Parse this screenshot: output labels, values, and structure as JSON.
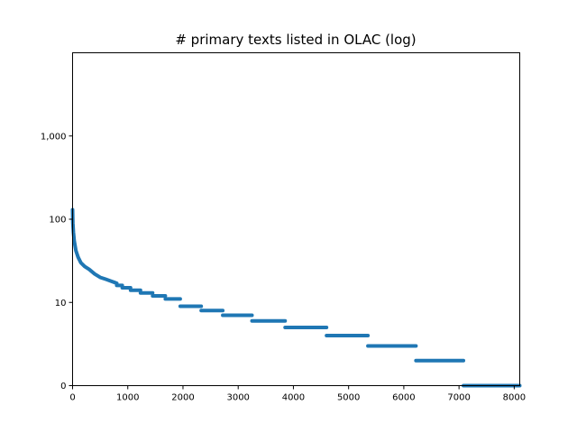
{
  "chart_data": {
    "type": "scatter",
    "title": "# primary texts listed in OLAC (log)",
    "xlabel": "",
    "ylabel": "",
    "y_scale": "log",
    "grid": false,
    "legend": "none",
    "xlim": [
      0,
      8100
    ],
    "ylim": [
      1,
      10000
    ],
    "x_ticks": [
      0,
      1000,
      2000,
      3000,
      4000,
      5000,
      6000,
      7000,
      8000
    ],
    "x_tick_labels": [
      "0",
      "1000",
      "2000",
      "3000",
      "4000",
      "5000",
      "6000",
      "7000",
      "8000"
    ],
    "y_ticks": [
      1,
      10,
      100,
      1000
    ],
    "y_tick_labels": [
      "0",
      "10",
      "100",
      "1,000"
    ],
    "marker_color": "#1f77b4",
    "curve": [
      {
        "x": 0,
        "y": 130
      },
      {
        "x": 5,
        "y": 90
      },
      {
        "x": 15,
        "y": 70
      },
      {
        "x": 30,
        "y": 55
      },
      {
        "x": 60,
        "y": 42
      },
      {
        "x": 100,
        "y": 35
      },
      {
        "x": 150,
        "y": 30
      },
      {
        "x": 220,
        "y": 27
      },
      {
        "x": 300,
        "y": 25
      },
      {
        "x": 400,
        "y": 22
      },
      {
        "x": 500,
        "y": 20
      },
      {
        "x": 600,
        "y": 19
      },
      {
        "x": 700,
        "y": 18
      },
      {
        "x": 800,
        "y": 17
      }
    ],
    "steps": [
      {
        "x_start": 800,
        "x_end": 900,
        "y": 16
      },
      {
        "x_start": 900,
        "x_end": 1050,
        "y": 15
      },
      {
        "x_start": 1050,
        "x_end": 1230,
        "y": 14
      },
      {
        "x_start": 1230,
        "x_end": 1450,
        "y": 13
      },
      {
        "x_start": 1450,
        "x_end": 1680,
        "y": 12
      },
      {
        "x_start": 1680,
        "x_end": 1950,
        "y": 11
      },
      {
        "x_start": 1950,
        "x_end": 2330,
        "y": 9
      },
      {
        "x_start": 2330,
        "x_end": 2720,
        "y": 8
      },
      {
        "x_start": 2720,
        "x_end": 3250,
        "y": 7
      },
      {
        "x_start": 3250,
        "x_end": 3850,
        "y": 6
      },
      {
        "x_start": 3850,
        "x_end": 4600,
        "y": 5
      },
      {
        "x_start": 4600,
        "x_end": 5350,
        "y": 4
      },
      {
        "x_start": 5350,
        "x_end": 6220,
        "y": 3
      },
      {
        "x_start": 6220,
        "x_end": 7080,
        "y": 2
      },
      {
        "x_start": 7080,
        "x_end": 8100,
        "y": 1
      }
    ]
  }
}
